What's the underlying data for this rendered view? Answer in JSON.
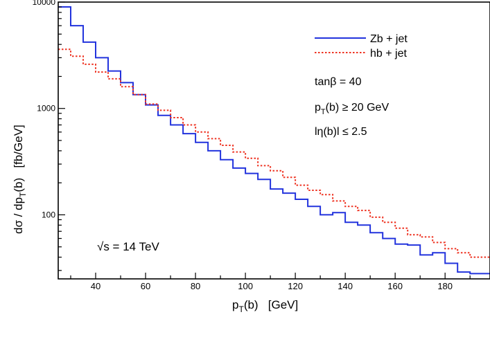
{
  "chart_data": {
    "type": "line",
    "subtype": "step",
    "xlim": [
      25,
      198
    ],
    "ylim": [
      25,
      10000
    ],
    "y_scale": "log",
    "grid": false,
    "legend_position": "top-right",
    "xlabel": {
      "main": "p",
      "sub": "T",
      "rest": "(b)   [GeV]"
    },
    "ylabel": {
      "pre": "dσ / dp",
      "sub": "T",
      "rest": "(b)   [fb/GeV]"
    },
    "x_ticks": [
      40,
      60,
      80,
      100,
      120,
      140,
      160,
      180
    ],
    "y_ticks": [
      100,
      1000,
      10000
    ],
    "bin_edges": [
      25,
      30,
      35,
      40,
      45,
      50,
      55,
      60,
      65,
      70,
      75,
      80,
      85,
      90,
      95,
      100,
      105,
      110,
      115,
      120,
      125,
      130,
      135,
      140,
      145,
      150,
      155,
      160,
      165,
      170,
      175,
      180,
      185,
      190,
      198
    ],
    "series": [
      {
        "name": "Zb + jet",
        "color": "#2233dd",
        "style": "solid",
        "values": [
          9000,
          6000,
          4200,
          3000,
          2250,
          1750,
          1350,
          1080,
          860,
          700,
          580,
          480,
          400,
          330,
          275,
          245,
          215,
          175,
          160,
          140,
          120,
          100,
          105,
          85,
          80,
          68,
          60,
          53,
          52,
          42,
          44,
          35,
          29,
          28
        ]
      },
      {
        "name": "hb + jet",
        "color": "#ee3322",
        "style": "dotted",
        "values": [
          3600,
          3100,
          2600,
          2200,
          1900,
          1600,
          1350,
          1100,
          960,
          820,
          700,
          600,
          520,
          450,
          390,
          340,
          290,
          260,
          225,
          190,
          170,
          155,
          135,
          120,
          110,
          95,
          85,
          75,
          65,
          62,
          55,
          48,
          44,
          40
        ]
      }
    ],
    "annotations": {
      "tanb": "tanβ = 40",
      "pt_cut": {
        "main": "p",
        "sub": "T",
        "rest": "(b) ≥ 20 GeV"
      },
      "eta_cut": "lη(b)l ≤ 2.5",
      "sqrt_s": "√s = 14 TeV"
    }
  }
}
